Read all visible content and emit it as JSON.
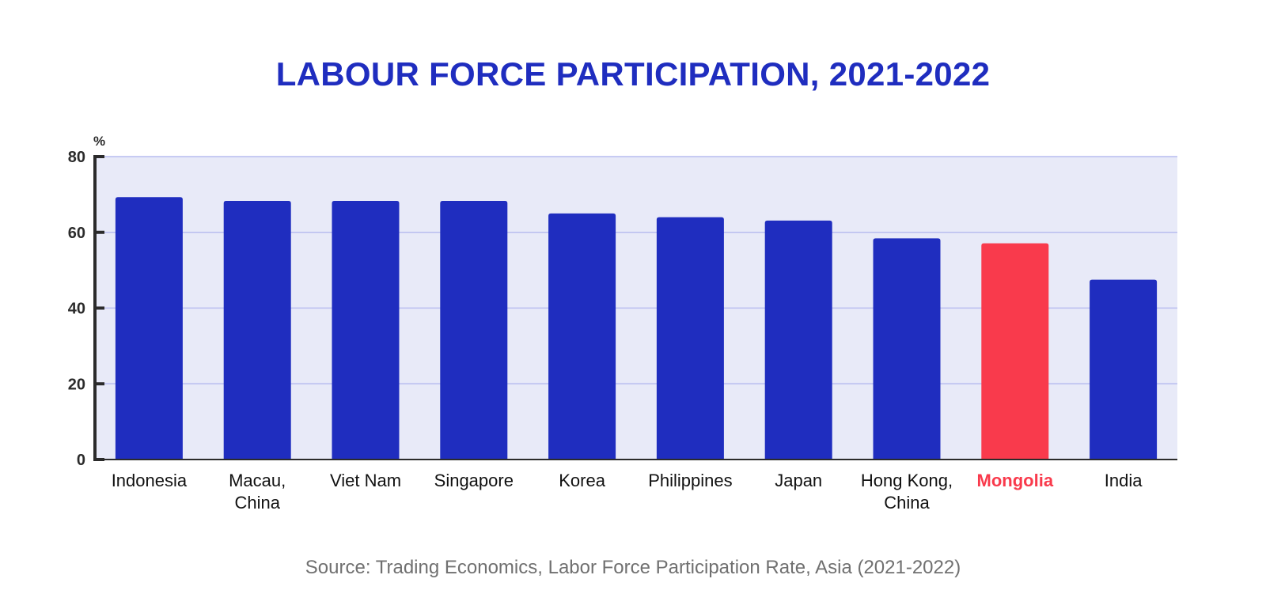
{
  "chart_data": {
    "type": "bar",
    "title": "LABOUR FORCE PARTICIPATION, 2021-2022",
    "unit_label": "%",
    "categories": [
      [
        "Indonesia"
      ],
      [
        "Macau,",
        "China"
      ],
      [
        "Viet Nam"
      ],
      [
        "Singapore"
      ],
      [
        "Korea"
      ],
      [
        "Philippines"
      ],
      [
        "Japan"
      ],
      [
        "Hong Kong,",
        "China"
      ],
      [
        "Mongolia"
      ],
      [
        "India"
      ]
    ],
    "values": [
      69.3,
      68.3,
      68.3,
      68.3,
      65.0,
      64.0,
      63.1,
      58.4,
      57.1,
      47.5
    ],
    "highlight": {
      "category_index": 8,
      "color": "#f93a4c"
    },
    "ylim": [
      0,
      80
    ],
    "yticks": [
      0,
      20,
      40,
      60,
      80
    ],
    "grid": true,
    "legend": "none",
    "colors": {
      "bar": "#1f2dbf",
      "highlight": "#f93a4c",
      "plot_background": "#e8eaf8",
      "gridline": "#b7bcef",
      "axis": "#2b2b2b",
      "title": "#1f2dbf"
    }
  },
  "source": "Source: Trading Economics, Labor Force Participation Rate, Asia (2021-2022)"
}
